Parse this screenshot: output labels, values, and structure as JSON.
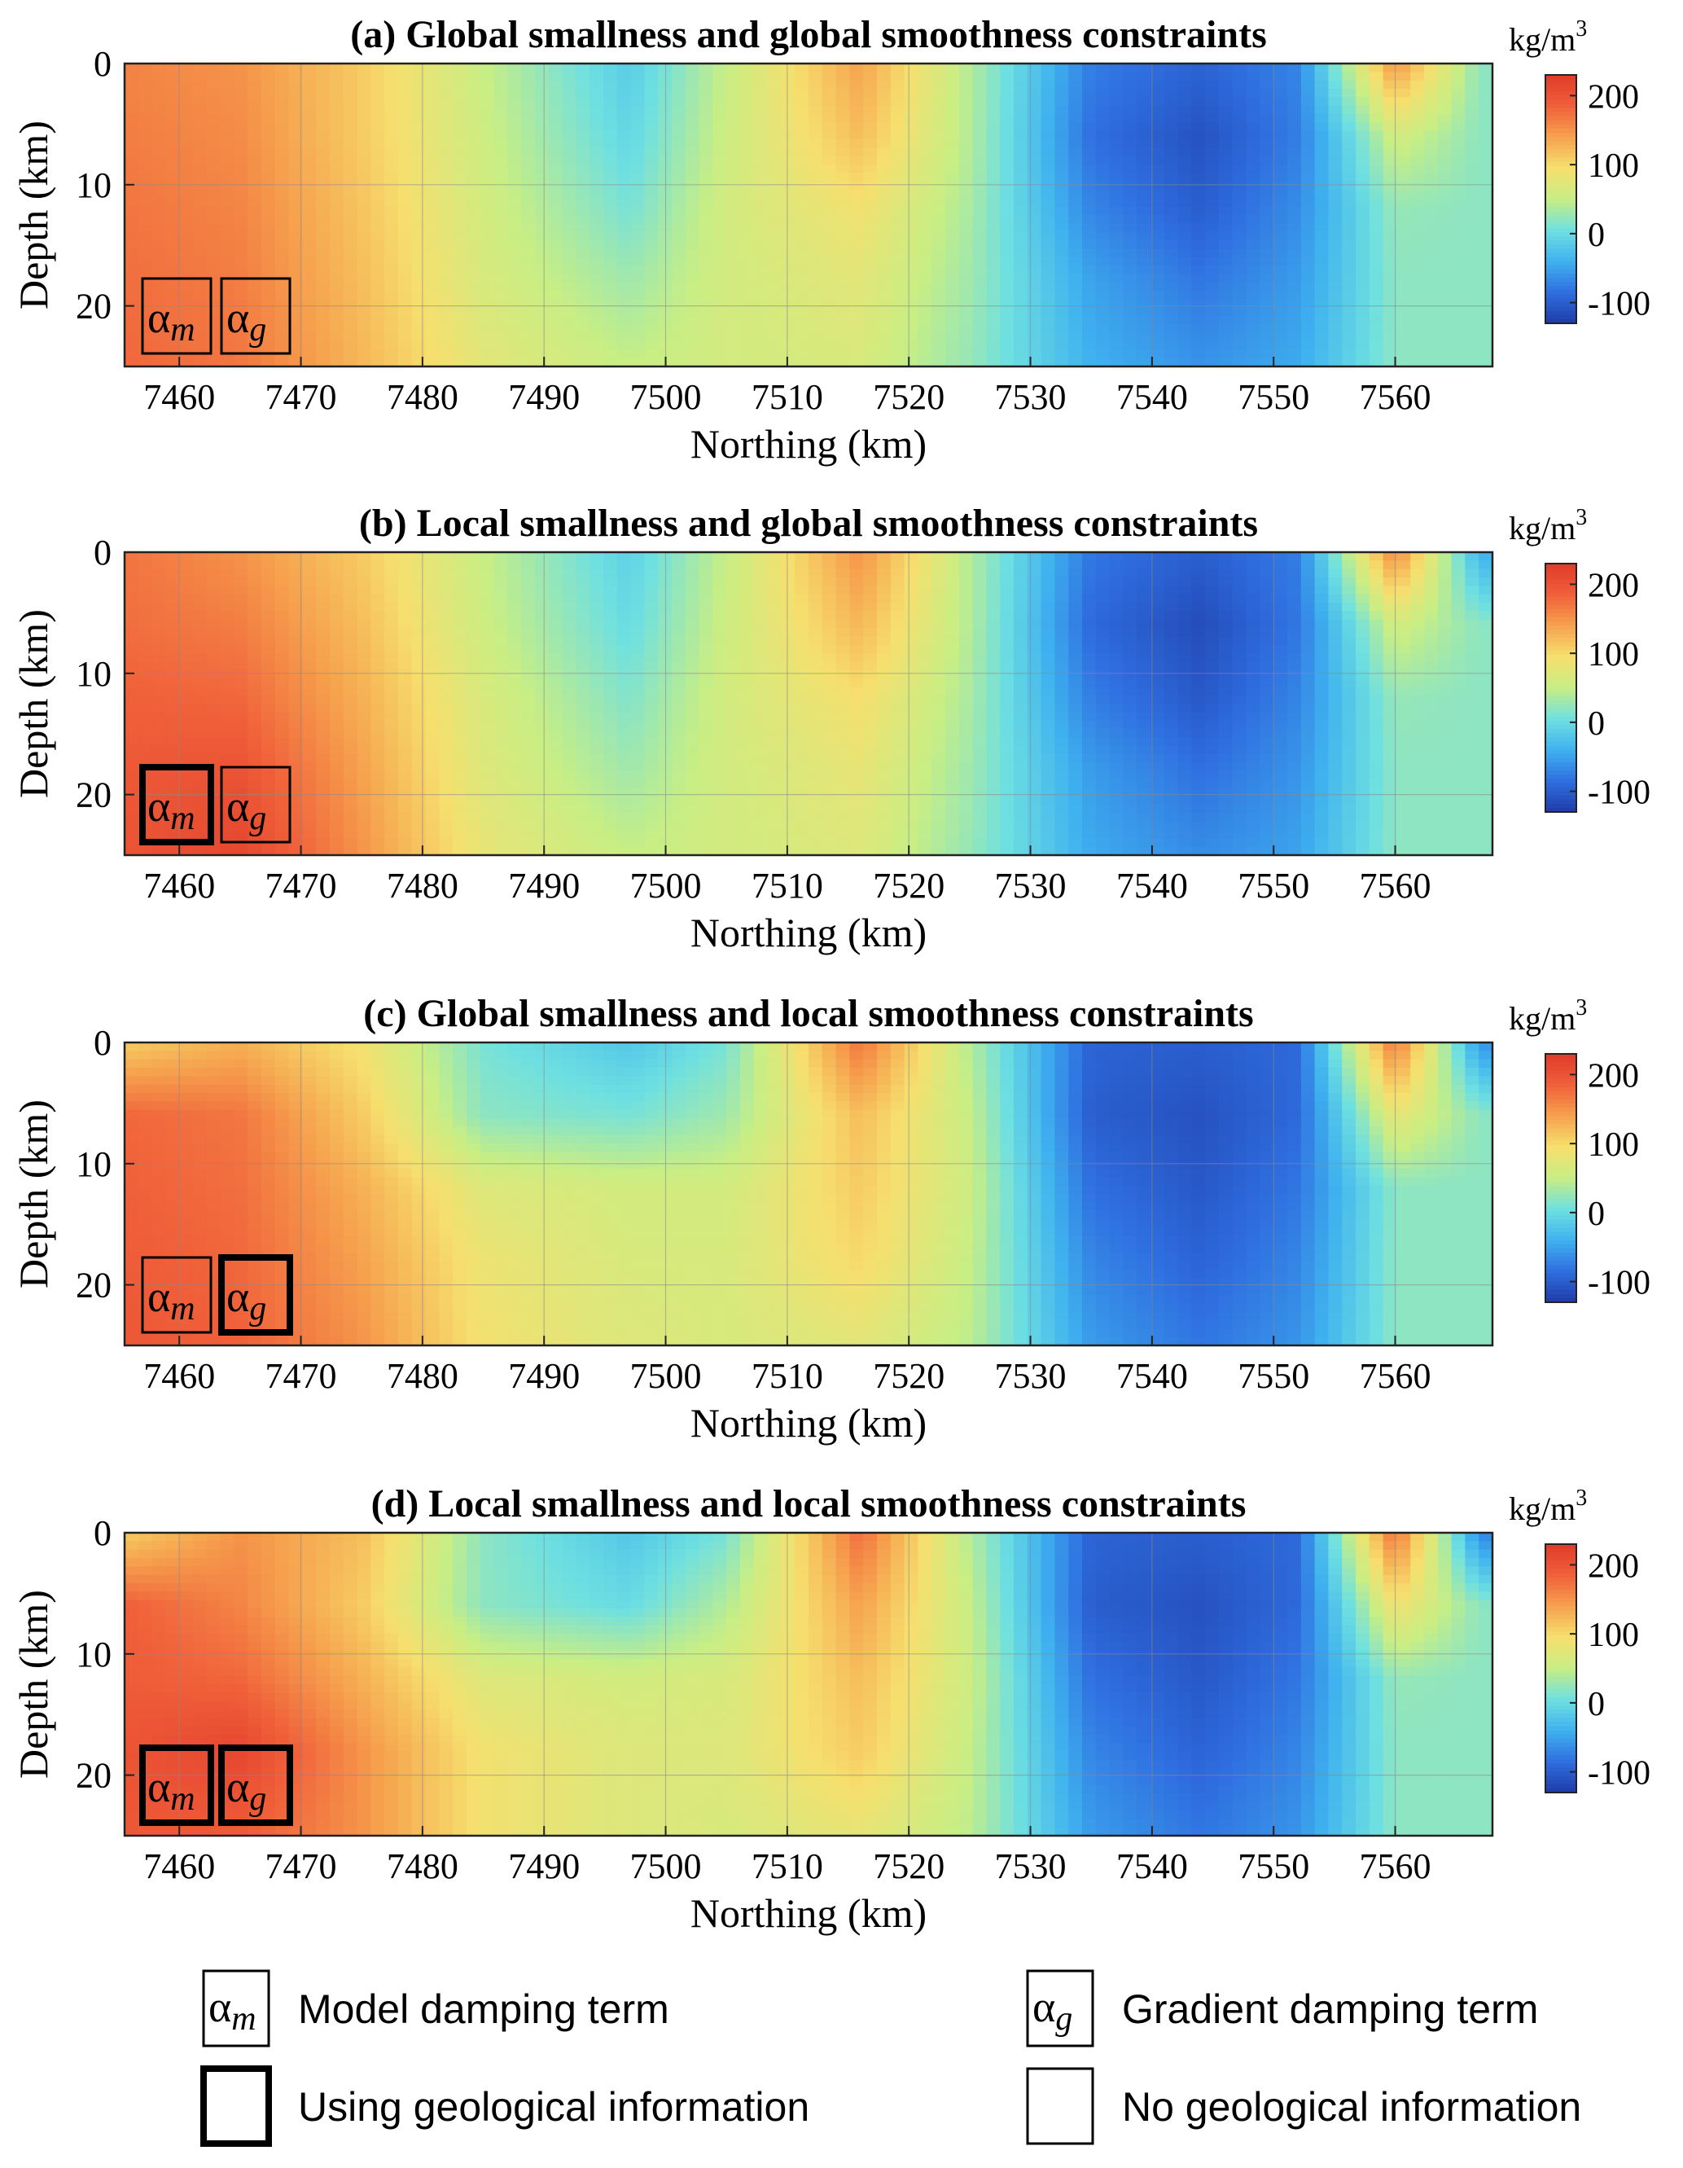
{
  "colorbar_ticks": [
    "200",
    "100",
    "0",
    "-100"
  ],
  "colorbar_range": [
    -130,
    230
  ],
  "colormap": [
    "#1f3ca8",
    "#2f6fe0",
    "#3fb2ef",
    "#6fe0e0",
    "#c8ee84",
    "#f6df6e",
    "#f6a24e",
    "#f0603a",
    "#e03a2a"
  ],
  "chart_data": [
    {
      "type": "heatmap",
      "title": "(a) Global smallness and global smoothness constraints",
      "xlabel": "Northing (km)",
      "ylabel": "Depth (km)",
      "unit_base": "kg/m",
      "unit_exp": "3",
      "xlim": [
        7455.5,
        7568
      ],
      "ylim": [
        25,
        0
      ],
      "xticks": [
        "7460",
        "7470",
        "7480",
        "7490",
        "7500",
        "7510",
        "7520",
        "7530",
        "7540",
        "7550",
        "7560"
      ],
      "yticks": [
        "0",
        "10",
        "20"
      ],
      "grid": true,
      "badge_m": "α",
      "badge_m_sub": "m",
      "badge_m_geo": false,
      "badge_g": "α",
      "badge_g_sub": "g",
      "badge_g_geo": false,
      "northing": [
        7456,
        7465,
        7475,
        7485,
        7497,
        7505,
        7516,
        7525,
        7535,
        7544,
        7552,
        7560,
        7567
      ],
      "depth": [
        0,
        6,
        12,
        18,
        25
      ],
      "density": [
        [
          160,
          150,
          110,
          50,
          -15,
          50,
          140,
          40,
          -75,
          -95,
          -70,
          150,
          20
        ],
        [
          165,
          155,
          110,
          55,
          -5,
          55,
          120,
          40,
          -85,
          -110,
          -75,
          60,
          20
        ],
        [
          170,
          160,
          115,
          60,
          10,
          60,
          90,
          35,
          -70,
          -100,
          -65,
          25,
          20
        ],
        [
          175,
          165,
          120,
          65,
          30,
          60,
          75,
          30,
          -50,
          -80,
          -55,
          20,
          20
        ],
        [
          180,
          170,
          125,
          75,
          50,
          60,
          65,
          25,
          -40,
          -60,
          -45,
          20,
          20
        ]
      ]
    },
    {
      "type": "heatmap",
      "title": "(b) Local smallness and global smoothness constraints",
      "xlabel": "Northing (km)",
      "ylabel": "Depth (km)",
      "unit_base": "kg/m",
      "unit_exp": "3",
      "xlim": [
        7455.5,
        7568
      ],
      "ylim": [
        25,
        0
      ],
      "xticks": [
        "7460",
        "7470",
        "7480",
        "7490",
        "7500",
        "7510",
        "7520",
        "7530",
        "7540",
        "7550",
        "7560"
      ],
      "yticks": [
        "0",
        "10",
        "20"
      ],
      "grid": true,
      "badge_m": "α",
      "badge_m_sub": "m",
      "badge_m_geo": true,
      "badge_g": "α",
      "badge_g_sub": "g",
      "badge_g_geo": false,
      "northing": [
        7456,
        7465,
        7475,
        7485,
        7497,
        7505,
        7516,
        7525,
        7535,
        7544,
        7552,
        7560,
        7567
      ],
      "depth": [
        0,
        6,
        12,
        18,
        25
      ],
      "density": [
        [
          170,
          150,
          110,
          50,
          -10,
          50,
          150,
          40,
          -80,
          -100,
          -75,
          160,
          -40
        ],
        [
          175,
          165,
          120,
          55,
          0,
          55,
          125,
          40,
          -90,
          -115,
          -80,
          60,
          20
        ],
        [
          185,
          180,
          130,
          65,
          15,
          60,
          95,
          35,
          -75,
          -105,
          -70,
          25,
          20
        ],
        [
          195,
          200,
          140,
          70,
          30,
          60,
          80,
          30,
          -55,
          -85,
          -60,
          20,
          20
        ],
        [
          200,
          215,
          150,
          80,
          50,
          60,
          70,
          25,
          -45,
          -65,
          -50,
          20,
          20
        ]
      ]
    },
    {
      "type": "heatmap",
      "title": "(c) Global smallness and local smoothness constraints",
      "xlabel": "Northing (km)",
      "ylabel": "Depth (km)",
      "unit_base": "kg/m",
      "unit_exp": "3",
      "xlim": [
        7455.5,
        7568
      ],
      "ylim": [
        25,
        0
      ],
      "xticks": [
        "7460",
        "7470",
        "7480",
        "7490",
        "7500",
        "7510",
        "7520",
        "7530",
        "7540",
        "7550",
        "7560"
      ],
      "yticks": [
        "0",
        "10",
        "20"
      ],
      "grid": true,
      "badge_m": "α",
      "badge_m_sub": "m",
      "badge_m_geo": false,
      "badge_g": "α",
      "badge_g_sub": "g",
      "badge_g_geo": true,
      "northing": [
        7456,
        7465,
        7475,
        7485,
        7497,
        7505,
        7516,
        7525,
        7535,
        7544,
        7552,
        7560,
        7567
      ],
      "depth": [
        0,
        6,
        12,
        18,
        25
      ],
      "density": [
        [
          110,
          130,
          90,
          10,
          -20,
          10,
          170,
          40,
          -95,
          -100,
          -90,
          170,
          -60
        ],
        [
          180,
          170,
          110,
          20,
          10,
          30,
          120,
          50,
          -100,
          -110,
          -90,
          80,
          20
        ],
        [
          185,
          175,
          130,
          70,
          60,
          60,
          110,
          55,
          -85,
          -105,
          -80,
          20,
          20
        ],
        [
          190,
          180,
          140,
          85,
          65,
          65,
          100,
          50,
          -70,
          -95,
          -70,
          20,
          20
        ],
        [
          195,
          185,
          150,
          90,
          70,
          65,
          75,
          45,
          -55,
          -80,
          -60,
          20,
          20
        ]
      ]
    },
    {
      "type": "heatmap",
      "title": "(d) Local smallness and local smoothness constraints",
      "xlabel": "Northing (km)",
      "ylabel": "Depth (km)",
      "unit_base": "kg/m",
      "unit_exp": "3",
      "xlim": [
        7455.5,
        7568
      ],
      "ylim": [
        25,
        0
      ],
      "xticks": [
        "7460",
        "7470",
        "7480",
        "7490",
        "7500",
        "7510",
        "7520",
        "7530",
        "7540",
        "7550",
        "7560"
      ],
      "yticks": [
        "0",
        "10",
        "20"
      ],
      "grid": true,
      "badge_m": "α",
      "badge_m_sub": "m",
      "badge_m_geo": true,
      "badge_g": "α",
      "badge_g_sub": "g",
      "badge_g_geo": true,
      "northing": [
        7456,
        7465,
        7475,
        7485,
        7497,
        7505,
        7516,
        7525,
        7535,
        7544,
        7552,
        7560,
        7567
      ],
      "depth": [
        0,
        6,
        12,
        18,
        25
      ],
      "density": [
        [
          110,
          150,
          120,
          20,
          -20,
          10,
          175,
          40,
          -95,
          -100,
          -90,
          175,
          -70
        ],
        [
          185,
          160,
          110,
          20,
          0,
          40,
          140,
          50,
          -100,
          -110,
          -90,
          90,
          20
        ],
        [
          190,
          180,
          130,
          70,
          60,
          65,
          120,
          55,
          -85,
          -105,
          -80,
          25,
          20
        ],
        [
          200,
          215,
          150,
          90,
          70,
          70,
          110,
          50,
          -70,
          -95,
          -70,
          20,
          20
        ],
        [
          195,
          190,
          150,
          90,
          70,
          65,
          80,
          45,
          -55,
          -80,
          -60,
          20,
          20
        ]
      ]
    }
  ],
  "legend": {
    "items": [
      {
        "symbol": "α",
        "sub": "m",
        "label": "Model damping term",
        "thick": false
      },
      {
        "symbol": "α",
        "sub": "g",
        "label": "Gradient damping term",
        "thick": false
      },
      {
        "symbol": "",
        "sub": "",
        "label": "Using geological information",
        "thick": true
      },
      {
        "symbol": "",
        "sub": "",
        "label": "No geological information",
        "thick": false
      }
    ]
  }
}
